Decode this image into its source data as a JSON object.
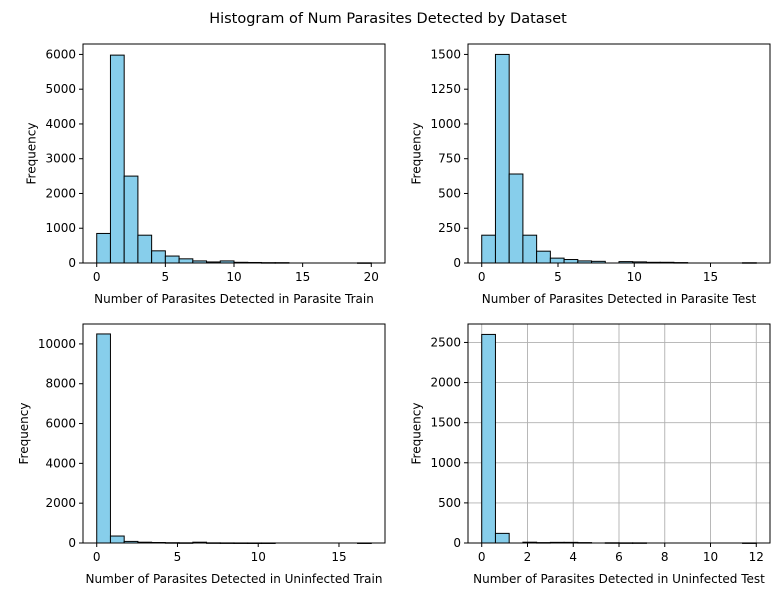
{
  "title": "Histogram of Num Parasites Detected by Dataset",
  "colors": {
    "bar_fill": "#87ceeb",
    "bar_edge": "#000000",
    "grid": "#b0b0b0"
  },
  "chart_data": [
    {
      "type": "bar",
      "title": "",
      "xlabel": "Number of Parasites Detected in Parasite Train",
      "ylabel": "Frequency",
      "xlim": [
        -1,
        21
      ],
      "ylim": [
        0,
        6300
      ],
      "xticks": [
        0,
        5,
        10,
        15,
        20
      ],
      "yticks": [
        0,
        1000,
        2000,
        3000,
        4000,
        5000,
        6000
      ],
      "grid": false,
      "bin_edges": [
        0,
        1,
        2,
        3,
        4,
        5,
        6,
        7,
        8,
        9,
        10,
        11,
        12,
        13,
        14,
        15,
        16,
        17,
        18,
        19,
        20
      ],
      "values": [
        850,
        5980,
        2500,
        800,
        350,
        200,
        120,
        60,
        30,
        60,
        20,
        15,
        10,
        10,
        0,
        0,
        0,
        0,
        0,
        5
      ]
    },
    {
      "type": "bar",
      "title": "",
      "xlabel": "Number of Parasites Detected in Parasite Test",
      "ylabel": "Frequency",
      "xlim": [
        -0.9,
        18.9
      ],
      "ylim": [
        0,
        1575
      ],
      "xticks": [
        0,
        5,
        10,
        15
      ],
      "yticks": [
        0,
        250,
        500,
        750,
        1000,
        1250,
        1500
      ],
      "grid": false,
      "bin_edges": [
        0,
        0.9,
        1.8,
        2.7,
        3.6,
        4.5,
        5.4,
        6.3,
        7.2,
        8.1,
        9.0,
        9.9,
        10.8,
        11.7,
        12.6,
        13.5,
        14.4,
        15.3,
        16.2,
        17.1,
        18.0
      ],
      "values": [
        200,
        1500,
        640,
        200,
        85,
        35,
        25,
        15,
        12,
        0,
        10,
        8,
        5,
        5,
        3,
        0,
        0,
        0,
        0,
        2
      ]
    },
    {
      "type": "bar",
      "title": "",
      "xlabel": "Number of Parasites Detected in Uninfected Train",
      "ylabel": "Frequency",
      "xlim": [
        -0.85,
        17.85
      ],
      "ylim": [
        0,
        11000
      ],
      "xticks": [
        0,
        5,
        10,
        15
      ],
      "yticks": [
        0,
        2000,
        4000,
        6000,
        8000,
        10000
      ],
      "grid": false,
      "bin_edges": [
        0,
        0.85,
        1.7,
        2.55,
        3.4,
        4.25,
        5.1,
        5.95,
        6.8,
        7.65,
        8.5,
        9.35,
        10.2,
        11.05,
        11.9,
        12.75,
        13.6,
        14.45,
        15.3,
        16.15,
        17.0
      ],
      "values": [
        10500,
        350,
        80,
        40,
        25,
        15,
        10,
        40,
        8,
        5,
        3,
        2,
        2,
        0,
        0,
        0,
        0,
        0,
        0,
        2
      ]
    },
    {
      "type": "bar",
      "title": "",
      "xlabel": "Number of Parasites Detected in Uninfected Test",
      "ylabel": "Frequency",
      "xlim": [
        -0.6,
        12.6
      ],
      "ylim": [
        0,
        2730
      ],
      "xticks": [
        0,
        2,
        4,
        6,
        8,
        10,
        12
      ],
      "yticks": [
        0,
        500,
        1000,
        1500,
        2000,
        2500
      ],
      "grid": true,
      "bin_edges": [
        0,
        0.6,
        1.2,
        1.8,
        2.4,
        3.0,
        3.6,
        4.2,
        4.8,
        5.4,
        6.0,
        6.6,
        7.2,
        7.8,
        8.4,
        9.0,
        9.6,
        10.2,
        10.8,
        11.4,
        12.0
      ],
      "values": [
        2600,
        120,
        0,
        10,
        5,
        8,
        8,
        5,
        0,
        3,
        2,
        2,
        0,
        0,
        0,
        0,
        0,
        0,
        0,
        1
      ]
    }
  ]
}
